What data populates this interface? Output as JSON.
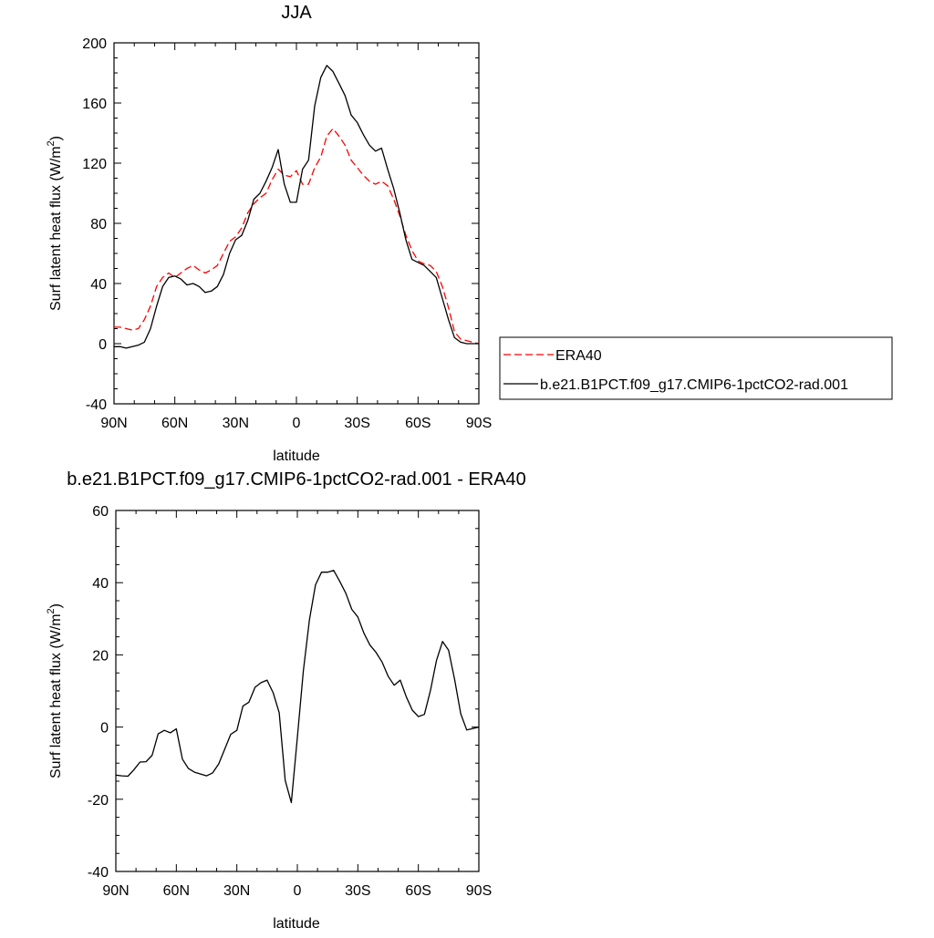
{
  "chart_data": [
    {
      "type": "line",
      "title": "JJA",
      "xlabel": "latitude",
      "ylabel": "Surf latent heat flux (W/m",
      "ylabel_sup": "2",
      "ylabel_end": ")",
      "xlim": [
        90,
        -90
      ],
      "ylim": [
        -40,
        200
      ],
      "xticks": [
        90,
        60,
        30,
        0,
        -30,
        -60,
        -90
      ],
      "xtick_labels": [
        "90N",
        "60N",
        "30N",
        "0",
        "30S",
        "60S",
        "90S"
      ],
      "yticks": [
        -40,
        0,
        40,
        80,
        120,
        160,
        200
      ],
      "ytick_labels": [
        "-40",
        "0",
        "40",
        "80",
        "120",
        "160",
        "200"
      ],
      "legend_position": "right",
      "series": [
        {
          "name": "ERA40",
          "color": "#ff0000",
          "dash": "dashed",
          "x": [
            90,
            87,
            84,
            81,
            78,
            75,
            72,
            69,
            66,
            63,
            60,
            57,
            54,
            51,
            48,
            45,
            42,
            39,
            36,
            33,
            30,
            27,
            24,
            21,
            18,
            15,
            12,
            9,
            6,
            3,
            0,
            -3,
            -6,
            -9,
            -12,
            -15,
            -18,
            -21,
            -24,
            -27,
            -30,
            -33,
            -36,
            -39,
            -42,
            -45,
            -48,
            -51,
            -54,
            -57,
            -60,
            -63,
            -66,
            -69,
            -72,
            -75,
            -78,
            -81,
            -84,
            -87,
            -90
          ],
          "y": [
            11,
            11,
            10,
            9,
            10,
            16,
            25,
            38,
            44,
            47,
            44,
            47,
            50,
            52,
            49,
            47,
            49,
            52,
            60,
            68,
            71,
            77,
            87,
            93,
            97,
            100,
            109,
            116,
            112,
            111,
            115,
            106,
            106,
            117,
            124,
            138,
            143,
            138,
            132,
            122,
            117,
            112,
            108,
            106,
            108,
            105,
            96,
            85,
            72,
            62,
            55,
            53,
            52,
            48,
            38,
            24,
            8,
            3,
            2,
            1,
            0
          ]
        },
        {
          "name": "b.e21.B1PCT.f09_g17.CMIP6-1pctCO2-rad.001",
          "color": "#000000",
          "dash": "solid",
          "x": [
            90,
            87,
            84,
            81,
            78,
            75,
            72,
            69,
            66,
            63,
            60,
            57,
            54,
            51,
            48,
            45,
            42,
            39,
            36,
            33,
            30,
            27,
            24,
            21,
            18,
            15,
            12,
            9,
            6,
            3,
            0,
            -3,
            -6,
            -9,
            -12,
            -15,
            -18,
            -21,
            -24,
            -27,
            -30,
            -33,
            -36,
            -39,
            -42,
            -45,
            -48,
            -51,
            -54,
            -57,
            -60,
            -63,
            -66,
            -69,
            -72,
            -75,
            -78,
            -81,
            -84,
            -87,
            -90
          ],
          "y": [
            -2,
            -2,
            -3,
            -2,
            -1,
            1,
            10,
            25,
            38,
            44,
            45,
            43,
            39,
            40,
            38,
            34,
            35,
            38,
            46,
            60,
            69,
            72,
            82,
            96,
            100,
            108,
            117,
            129,
            106,
            94,
            94,
            116,
            122,
            158,
            177,
            185,
            181,
            173,
            165,
            152,
            147,
            139,
            132,
            128,
            130,
            116,
            103,
            87,
            69,
            56,
            54,
            52,
            48,
            44,
            30,
            16,
            4,
            1,
            0,
            0,
            0
          ]
        }
      ]
    },
    {
      "type": "line",
      "title": "b.e21.B1PCT.f09_g17.CMIP6-1pctCO2-rad.001 - ERA40",
      "xlabel": "latitude",
      "ylabel": "Surf latent heat flux (W/m",
      "ylabel_sup": "2",
      "ylabel_end": ")",
      "xlim": [
        90,
        -90
      ],
      "ylim": [
        -40,
        60
      ],
      "xticks": [
        90,
        60,
        30,
        0,
        -30,
        -60,
        -90
      ],
      "xtick_labels": [
        "90N",
        "60N",
        "30N",
        "0",
        "30S",
        "60S",
        "90S"
      ],
      "yticks": [
        -40,
        -20,
        0,
        20,
        40,
        60
      ],
      "ytick_labels": [
        "-40",
        "-20",
        "0",
        "20",
        "40",
        "60"
      ],
      "series": [
        {
          "color": "#000000",
          "dash": "solid",
          "x": [
            90,
            87,
            84,
            81,
            78,
            75,
            72,
            69,
            66,
            63,
            60,
            57,
            54,
            51,
            48,
            45,
            42,
            39,
            36,
            33,
            30,
            27,
            24,
            21,
            18,
            15,
            12,
            9,
            6,
            3,
            0,
            -3,
            -6,
            -9,
            -12,
            -15,
            -18,
            -21,
            -24,
            -27,
            -30,
            -33,
            -36,
            -39,
            -42,
            -45,
            -48,
            -51,
            -54,
            -57,
            -60,
            -63,
            -66,
            -69,
            -72,
            -75,
            -78,
            -81,
            -84,
            -87,
            -90
          ],
          "y": [
            -13.3,
            -13.5,
            -13.6,
            -11.8,
            -9.7,
            -9.6,
            -7.8,
            -1.9,
            -0.9,
            -1.6,
            -0.5,
            -8.9,
            -11.5,
            -12.5,
            -13,
            -13.5,
            -12.7,
            -10.2,
            -6.1,
            -2,
            -0.9,
            5.8,
            6.9,
            11,
            12.3,
            13,
            9.5,
            4,
            -14.8,
            -20.9,
            -2.9,
            15.6,
            29.8,
            39.4,
            42.9,
            42.9,
            43.4,
            40.4,
            37.1,
            32.6,
            30.5,
            26,
            22.7,
            20.7,
            18,
            14.1,
            11.6,
            13,
            8.4,
            4.7,
            2.9,
            3.5,
            10.1,
            18.5,
            23.7,
            21.3,
            13.1,
            3.7,
            -0.8,
            -0.4,
            0
          ]
        }
      ]
    }
  ]
}
